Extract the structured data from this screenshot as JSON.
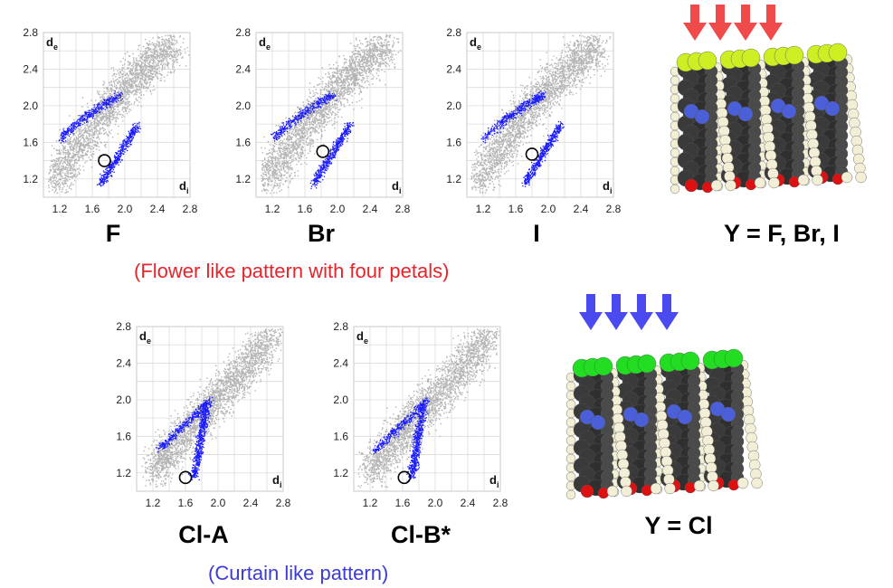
{
  "colors": {
    "gray_points": "#b4b4b4",
    "blue_points": "#1a1aff",
    "caption_red": "#e8232a",
    "caption_blue": "#3b3bd6",
    "arrow_red": "#f04a4a",
    "arrow_blue": "#4a4af0",
    "halogen_yellow": "#ccee22",
    "halogen_green": "#22dd22",
    "nitrogen": "#4a5fd8",
    "oxygen": "#dd1111",
    "carbon": "#3a3a3a",
    "hydrogen": "#f2efd6"
  },
  "captions": {
    "top": "(Flower like pattern with four petals)",
    "bottom": "(Curtain like pattern)"
  },
  "structures": {
    "top_label": "Y = F, Br, I",
    "bottom_label": "Y = Cl"
  },
  "chart_data": [
    {
      "type": "scatter",
      "label": "F",
      "xlabel": "d",
      "xlabel_sub": "i",
      "ylabel": "d",
      "ylabel_sub": "e",
      "xlim": [
        1.0,
        2.8
      ],
      "ylim": [
        1.0,
        2.8
      ],
      "xticks": [
        "1.2",
        "1.6",
        "2.0",
        "2.4",
        "2.8"
      ],
      "yticks": [
        "1.2",
        "1.6",
        "2.0",
        "2.4",
        "2.8"
      ],
      "grid": true,
      "marker": {
        "x": 1.75,
        "y": 1.4
      },
      "pattern": "flower"
    },
    {
      "type": "scatter",
      "label": "Br",
      "xlabel": "d",
      "xlabel_sub": "i",
      "ylabel": "d",
      "ylabel_sub": "e",
      "xlim": [
        1.0,
        2.8
      ],
      "ylim": [
        1.0,
        2.8
      ],
      "xticks": [
        "1.2",
        "1.6",
        "2.0",
        "2.4",
        "2.8"
      ],
      "yticks": [
        "1.2",
        "1.6",
        "2.0",
        "2.4",
        "2.8"
      ],
      "grid": true,
      "marker": {
        "x": 1.82,
        "y": 1.5
      },
      "pattern": "flower"
    },
    {
      "type": "scatter",
      "label": "I",
      "xlabel": "d",
      "xlabel_sub": "i",
      "ylabel": "d",
      "ylabel_sub": "e",
      "xlim": [
        1.0,
        2.8
      ],
      "ylim": [
        1.0,
        2.8
      ],
      "xticks": [
        "1.2",
        "1.6",
        "2.0",
        "2.4",
        "2.8"
      ],
      "yticks": [
        "1.2",
        "1.6",
        "2.0",
        "2.4",
        "2.8"
      ],
      "grid": true,
      "marker": {
        "x": 1.8,
        "y": 1.47
      },
      "pattern": "flower"
    },
    {
      "type": "scatter",
      "label": "Cl-A",
      "xlabel": "d",
      "xlabel_sub": "i",
      "ylabel": "d",
      "ylabel_sub": "e",
      "xlim": [
        1.0,
        2.8
      ],
      "ylim": [
        1.0,
        2.8
      ],
      "xticks": [
        "1.2",
        "1.6",
        "2.0",
        "2.4",
        "2.8"
      ],
      "yticks": [
        "1.2",
        "1.6",
        "2.0",
        "2.4",
        "2.8"
      ],
      "grid": true,
      "marker": {
        "x": 1.6,
        "y": 1.15
      },
      "pattern": "curtain"
    },
    {
      "type": "scatter",
      "label": "Cl-B*",
      "xlabel": "d",
      "xlabel_sub": "i",
      "ylabel": "d",
      "ylabel_sub": "e",
      "xlim": [
        1.0,
        2.8
      ],
      "ylim": [
        1.0,
        2.8
      ],
      "xticks": [
        "1.2",
        "1.6",
        "2.0",
        "2.4",
        "2.8"
      ],
      "yticks": [
        "1.2",
        "1.6",
        "2.0",
        "2.4",
        "2.8"
      ],
      "grid": true,
      "marker": {
        "x": 1.62,
        "y": 1.15
      },
      "pattern": "curtain"
    }
  ]
}
